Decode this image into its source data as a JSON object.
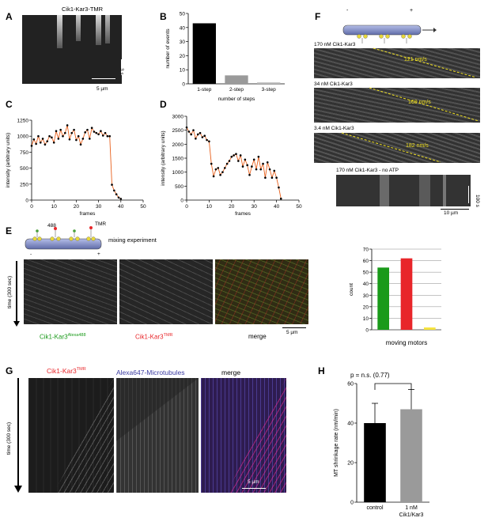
{
  "panels": {
    "A": {
      "letter": "A",
      "title": "Cik1-Kar3-TMR",
      "time_scale": "3 s",
      "space_scale": "5 µm"
    },
    "B": {
      "letter": "B"
    },
    "C": {
      "letter": "C"
    },
    "D": {
      "letter": "D"
    },
    "E": {
      "letter": "E",
      "label_488": "488",
      "label_tmr": "TMR",
      "experiment": "mixing experiment",
      "minus": "-",
      "plus": "+",
      "time_axis": "time (300 sec)",
      "label_green": "Cik1-Kar3",
      "label_green_sup": "Alexa488",
      "label_red": "Cik1-Kar3",
      "label_red_sup": "TMR",
      "label_merge": "merge",
      "scale": "5 µm"
    },
    "F": {
      "letter": "F",
      "minus": "-",
      "plus": "+",
      "rows": [
        {
          "label": "170 nM Cik1-Kar3",
          "speed": "121 nm/s"
        },
        {
          "label": "34 nM Cik1-Kar3",
          "speed": "160 nm/s"
        },
        {
          "label": "3.4 nM Cik1-Kar3",
          "speed": "182 nm/s"
        },
        {
          "label": "170 nM Cik1-Kar3 - no ATP",
          "speed": ""
        }
      ],
      "time_scale": "100 s",
      "space_scale": "10 µm"
    },
    "G": {
      "letter": "G",
      "time_axis": "time (300 sec)",
      "label_red": "Cik1-Kar3",
      "label_red_sup": "TMR",
      "label_blue": "Alexa647-Microtubules",
      "label_merge": "merge",
      "scale": "5 µm"
    },
    "H": {
      "letter": "H",
      "pvalue": "p = n.s. (0.77)"
    }
  },
  "colors": {
    "orange": "#e8601c",
    "green": "#1a9a1a",
    "red": "#e8262a",
    "yellow": "#f5e33c",
    "blue": "#3a3aa0",
    "dash": "#f0e020"
  },
  "chart_data": [
    {
      "id": "B",
      "type": "bar",
      "title": "",
      "xlabel": "number of steps",
      "ylabel": "number of events",
      "categories": [
        "1-step",
        "2-step",
        "3-step"
      ],
      "values": [
        43,
        6,
        1
      ],
      "bar_colors": [
        "#000000",
        "#9a9a9a",
        "#b8b8b8"
      ],
      "ylim": [
        0,
        50
      ],
      "yticks": [
        0,
        10,
        20,
        30,
        40,
        50
      ],
      "grid": false
    },
    {
      "id": "C",
      "type": "line",
      "title": "",
      "xlabel": "frames",
      "ylabel": "intensity (arbitrary units)",
      "xlim": [
        0,
        50
      ],
      "ylim": [
        0,
        1250
      ],
      "xticks": [
        0,
        10,
        20,
        30,
        40,
        50
      ],
      "yticks": [
        0,
        100,
        200,
        300,
        400,
        500,
        600,
        700,
        800,
        900,
        1000,
        1050,
        1100,
        1150,
        1200,
        1250
      ],
      "ytick_labels_shown": [
        0,
        250,
        500,
        750,
        1000,
        1250
      ],
      "x": [
        0,
        1,
        2,
        3,
        4,
        5,
        6,
        7,
        8,
        9,
        10,
        11,
        12,
        13,
        14,
        15,
        16,
        17,
        18,
        19,
        20,
        21,
        22,
        23,
        24,
        25,
        26,
        27,
        28,
        29,
        30,
        31,
        32,
        33,
        34,
        35,
        36,
        37,
        38,
        39,
        40
      ],
      "y": [
        850,
        950,
        880,
        1000,
        900,
        960,
        870,
        920,
        1000,
        980,
        900,
        1080,
        960,
        1100,
        1000,
        1050,
        1170,
        950,
        1050,
        1100,
        940,
        1000,
        870,
        960,
        1060,
        1100,
        960,
        1130,
        1070,
        1050,
        1030,
        1080,
        1010,
        1050,
        1000,
        1000,
        240,
        150,
        90,
        40,
        20
      ],
      "line_color": "#e8601c",
      "marker_color": "#000000"
    },
    {
      "id": "D",
      "type": "line",
      "title": "",
      "xlabel": "frames",
      "ylabel": "intensity (arbitrary units)",
      "xlim": [
        0,
        50
      ],
      "ylim": [
        0,
        3000
      ],
      "xticks": [
        0,
        10,
        20,
        30,
        40,
        50
      ],
      "yticks": [
        0,
        500,
        1000,
        1500,
        2000,
        2500,
        3000
      ],
      "x": [
        0,
        1,
        2,
        3,
        4,
        5,
        6,
        7,
        8,
        9,
        10,
        11,
        12,
        13,
        14,
        15,
        16,
        17,
        18,
        19,
        20,
        21,
        22,
        23,
        24,
        25,
        26,
        27,
        28,
        29,
        30,
        31,
        32,
        33,
        34,
        35,
        36,
        37,
        38,
        39,
        40,
        41,
        42
      ],
      "y": [
        2600,
        2450,
        2350,
        2500,
        2200,
        2350,
        2400,
        2250,
        2300,
        2150,
        2100,
        1300,
        850,
        1100,
        1150,
        900,
        1000,
        1150,
        1300,
        1400,
        1550,
        1600,
        1650,
        1400,
        1600,
        1200,
        1450,
        1250,
        900,
        1200,
        1450,
        1100,
        1550,
        1100,
        1300,
        800,
        1350,
        1100,
        800,
        1050,
        800,
        450,
        50
      ],
      "line_color": "#e8601c",
      "marker_color": "#000000"
    },
    {
      "id": "E",
      "type": "bar",
      "title": "",
      "xlabel": "moving motors",
      "ylabel": "count",
      "categories": [
        "Cik1-Kar3 Alexa488",
        "Cik1-Kar3 TMR",
        "merge"
      ],
      "values": [
        54,
        62,
        2
      ],
      "bar_colors": [
        "#1a9a1a",
        "#e8262a",
        "#f5e33c"
      ],
      "ylim": [
        0,
        70
      ],
      "yticks": [
        0,
        10,
        20,
        30,
        40,
        50,
        60,
        70
      ],
      "grid": true
    },
    {
      "id": "H",
      "type": "bar",
      "title": "",
      "xlabel": "",
      "ylabel": "MT shrinkage rate (nm/min)",
      "categories": [
        "control",
        "1 nM Cik1/Kar3"
      ],
      "values": [
        40,
        47
      ],
      "errors": [
        10,
        10
      ],
      "bar_colors": [
        "#000000",
        "#9a9a9a"
      ],
      "ylim": [
        0,
        60
      ],
      "yticks": [
        0,
        20,
        40,
        60
      ],
      "grid": false
    }
  ]
}
